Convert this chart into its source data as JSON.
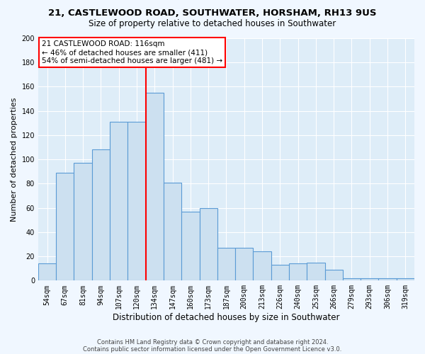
{
  "title_line1": "21, CASTLEWOOD ROAD, SOUTHWATER, HORSHAM, RH13 9US",
  "title_line2": "Size of property relative to detached houses in Southwater",
  "xlabel": "Distribution of detached houses by size in Southwater",
  "ylabel": "Number of detached properties",
  "categories": [
    "54sqm",
    "67sqm",
    "81sqm",
    "94sqm",
    "107sqm",
    "120sqm",
    "134sqm",
    "147sqm",
    "160sqm",
    "173sqm",
    "187sqm",
    "200sqm",
    "213sqm",
    "226sqm",
    "240sqm",
    "253sqm",
    "266sqm",
    "279sqm",
    "293sqm",
    "306sqm",
    "319sqm"
  ],
  "values": [
    14,
    89,
    97,
    108,
    131,
    131,
    155,
    81,
    57,
    60,
    27,
    27,
    24,
    13,
    14,
    15,
    9,
    2,
    2,
    2,
    2
  ],
  "bar_color": "#cce0f0",
  "bar_edge_color": "#5b9bd5",
  "red_line_x": 5.5,
  "ylim": [
    0,
    200
  ],
  "yticks": [
    0,
    20,
    40,
    60,
    80,
    100,
    120,
    140,
    160,
    180,
    200
  ],
  "annotation_box_text": "21 CASTLEWOOD ROAD: 116sqm\n← 46% of detached houses are smaller (411)\n54% of semi-detached houses are larger (481) →",
  "footer_line1": "Contains HM Land Registry data © Crown copyright and database right 2024.",
  "footer_line2": "Contains public sector information licensed under the Open Government Licence v3.0.",
  "fig_bg_color": "#f0f7ff",
  "plot_bg_color": "#deedf8"
}
